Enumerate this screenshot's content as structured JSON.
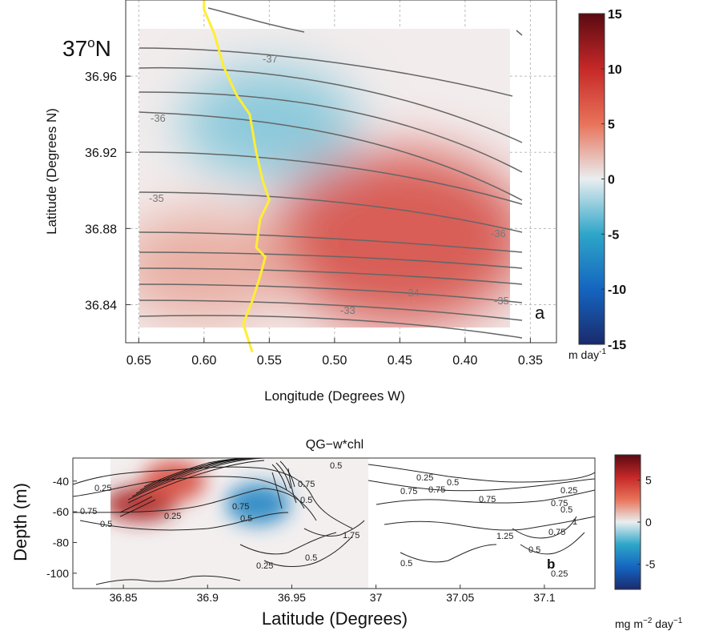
{
  "chart_data": [
    {
      "type": "heatmap",
      "panel_label": "a",
      "xlabel": "Longitude (Degrees W)",
      "ylabel": "Latitude (Degrees N)",
      "x_reversed": true,
      "xlim": [
        0.66,
        0.33
      ],
      "ylim": [
        36.82,
        37.0
      ],
      "x_ticks": [
        "0.65",
        "0.60",
        "0.55",
        "0.50",
        "0.45",
        "0.40",
        "0.35"
      ],
      "y_ticks": [
        "36.84",
        "36.88",
        "36.92",
        "36.96"
      ],
      "top_lat_label": {
        "base": "37",
        "sup": "o",
        "suffix": "N"
      },
      "grid": true,
      "colorbar": {
        "min": -15,
        "max": 15,
        "ticks": [
          "15",
          "10",
          "5",
          "0",
          "-5",
          "-10",
          "-15"
        ],
        "unit_base": "m day",
        "unit_sup": "-1",
        "colors": [
          "#1a2a6c",
          "#1565c0",
          "#2ea6c8",
          "#e9eef0",
          "#e8735a",
          "#c62828",
          "#5a0a12"
        ]
      },
      "field_blobs": [
        {
          "lon": 0.55,
          "lat": 36.935,
          "value": -3.0
        },
        {
          "lon": 0.45,
          "lat": 36.875,
          "value": 8.0
        },
        {
          "lon": 0.6,
          "lat": 36.86,
          "value": 3.0
        }
      ],
      "contour_labels": [
        "-37",
        "-36",
        "-35",
        "-36",
        "-35",
        "-34",
        "-33"
      ],
      "yellow_track": [
        {
          "lon": 0.6,
          "lat": 37.015
        },
        {
          "lon": 0.6,
          "lat": 36.995
        },
        {
          "lon": 0.592,
          "lat": 36.982
        },
        {
          "lon": 0.585,
          "lat": 36.965
        },
        {
          "lon": 0.575,
          "lat": 36.95
        },
        {
          "lon": 0.565,
          "lat": 36.94
        },
        {
          "lon": 0.56,
          "lat": 36.92
        },
        {
          "lon": 0.555,
          "lat": 36.905
        },
        {
          "lon": 0.55,
          "lat": 36.895
        },
        {
          "lon": 0.557,
          "lat": 36.885
        },
        {
          "lon": 0.56,
          "lat": 36.87
        },
        {
          "lon": 0.553,
          "lat": 36.865
        },
        {
          "lon": 0.557,
          "lat": 36.855
        },
        {
          "lon": 0.563,
          "lat": 36.842
        },
        {
          "lon": 0.57,
          "lat": 36.83
        },
        {
          "lon": 0.563,
          "lat": 36.815
        }
      ]
    },
    {
      "type": "heatmap",
      "panel_label": "b",
      "title": "QG−w*chl",
      "xlabel": "Latitude (Degrees)",
      "ylabel": "Depth (m)",
      "xlim": [
        36.82,
        37.13
      ],
      "ylim": [
        -110,
        -25
      ],
      "x_ticks": [
        "36.85",
        "36.9",
        "36.95",
        "37",
        "37.05",
        "37.1"
      ],
      "y_ticks": [
        "-40",
        "-60",
        "-80",
        "-100"
      ],
      "colorbar": {
        "min": -8,
        "max": 8,
        "ticks": [
          "5",
          "0",
          "-5"
        ],
        "unit_base": "mg m",
        "unit_sup": "−2",
        "unit_suffix": " day",
        "unit_sup2": "−1",
        "colors": [
          "#1a2a6c",
          "#1565c0",
          "#2ea6c8",
          "#e9eef0",
          "#e8735a",
          "#c62828",
          "#5a0a12"
        ]
      },
      "field_blobs": [
        {
          "lat": 36.86,
          "depth": -55,
          "value": 6.0
        },
        {
          "lat": 36.88,
          "depth": -40,
          "value": 4.0
        },
        {
          "lat": 36.93,
          "depth": -55,
          "value": -4.0
        }
      ],
      "contour_labels": [
        "0.25",
        "0.75",
        "0.5",
        "0.75",
        "0.5",
        "0.75",
        "0.25",
        "0.5",
        "0.5",
        "1.75",
        "0.25",
        "0.5",
        "0.75",
        "1.25",
        "0.75",
        "0.75",
        "0.25",
        "0.75",
        "0.5",
        "0.25",
        "0.5",
        "1",
        "0.75",
        "0.5",
        "0.25",
        "0.5"
      ]
    }
  ]
}
